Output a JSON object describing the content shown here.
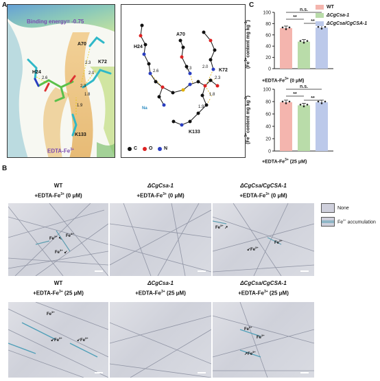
{
  "panels": {
    "a": "A",
    "b": "B",
    "c": "C"
  },
  "panel_a": {
    "binding_energy": "Binding energy= -0.75",
    "residues": [
      "H24",
      "A70",
      "K72",
      "K133"
    ],
    "ligand": "EDTA-Fe",
    "ligand_sup": "3+",
    "distances_3d": [
      "2.6",
      "2.3",
      "2.0",
      "2.3",
      "1.8",
      "1.9"
    ],
    "distances_2d": [
      "2.6",
      "2.3",
      "2.0",
      "2.3",
      "1.8",
      "1.9"
    ],
    "legend": [
      "C",
      "O",
      "N"
    ],
    "na_label": "Na"
  },
  "panel_c": {
    "chart_data": [
      {
        "type": "bar",
        "treatment": "+EDTA-Fe3+ (0 μM)",
        "categories": [
          "WT",
          "ΔCgCsa-1",
          "ΔCgCsa/CgCSA-1"
        ],
        "values": [
          72,
          48,
          73
        ],
        "ylabel": "(Fe3+content mg kg-1)",
        "ylim": [
          0,
          100
        ],
        "yticks": [
          0,
          20,
          40,
          60,
          80,
          100
        ],
        "significance": [
          "**",
          "**",
          "n.s."
        ]
      },
      {
        "type": "bar",
        "treatment": "+EDTA-Fe3+ (25 μM)",
        "categories": [
          "WT",
          "ΔCgCsa-1",
          "ΔCgCsa/CgCSA-1"
        ],
        "values": [
          79,
          74,
          79
        ],
        "ylabel": "(Fe3+content mg kg-1)",
        "ylim": [
          0,
          100
        ],
        "yticks": [
          0,
          20,
          40,
          60,
          80,
          100
        ],
        "significance": [
          "**",
          "**",
          "n.s."
        ]
      }
    ],
    "legend": [
      {
        "label": "WT",
        "color": "#f4b5ae"
      },
      {
        "label": "ΔCgCsa-1",
        "color": "#b9dca9"
      },
      {
        "label": "ΔCgCsa/CgCSA-1",
        "color": "#bcc9ea"
      }
    ],
    "ylabel_pre": "(Fe",
    "ylabel_sup": "3+",
    "ylabel_post": "content mg kg",
    "ylabel_sup2": "-1",
    "ylabel_end": ")",
    "x_treatment_0": "+EDTA-Fe",
    "x_treatment_0_end": " (0 μM)",
    "x_treatment_25": "+EDTA-Fe",
    "x_treatment_25_end": " (25 μM)",
    "sup3": "3+"
  },
  "panel_b": {
    "col_titles": [
      "WT",
      "ΔCgCsa-1",
      "ΔCgCsa/CgCSA-1"
    ],
    "edta_0": "+EDTA-Fe",
    "edta_0_end": " (0 μM)",
    "edta_25": "+EDTA-Fe",
    "edta_25_end": " (25 μM)",
    "sup3": "3+",
    "fe_label": "Fe",
    "legend": [
      {
        "label": "None",
        "color": "#cfd0dc"
      },
      {
        "label": "Fe",
        "sup": "3+",
        "label_end": " accumulation",
        "color": "#8fb6c6"
      }
    ]
  },
  "colors": {
    "wt": "#f4b5ae",
    "ko": "#b9dca9",
    "comp": "#bcc9ea"
  }
}
